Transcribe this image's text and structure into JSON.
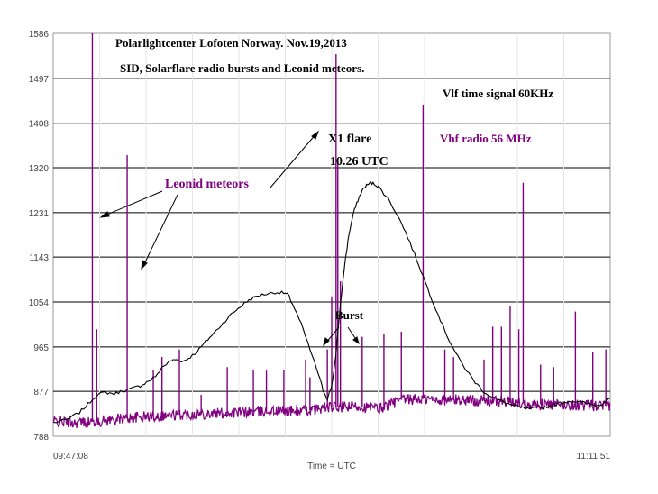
{
  "chart_data": {
    "type": "line",
    "title": "Polarlightcenter Lofoten Norway.  Nov.19,2013",
    "subtitle": "SID, Solarflare radio bursts and Leonid meteors.",
    "xlabel": "Time = UTC",
    "ylabel": "",
    "x_start_label": "09:47:08",
    "x_end_label": "11:11:51",
    "y_ticks": [
      788,
      877,
      965,
      1054,
      1143,
      1231,
      1320,
      1408,
      1497,
      1586
    ],
    "ylim": [
      788,
      1586
    ],
    "grid": true,
    "series": [
      {
        "name": "Vlf time signal 60KHz",
        "color": "#000000",
        "points": [
          [
            0,
            815
          ],
          [
            3,
            820
          ],
          [
            6,
            835
          ],
          [
            8,
            852
          ],
          [
            10,
            870
          ],
          [
            12,
            875
          ],
          [
            14,
            872
          ],
          [
            16,
            878
          ],
          [
            18,
            882
          ],
          [
            20,
            888
          ],
          [
            22,
            898
          ],
          [
            24,
            910
          ],
          [
            25,
            925
          ],
          [
            27,
            937
          ],
          [
            28,
            940
          ],
          [
            30,
            937
          ],
          [
            31,
            942
          ],
          [
            33,
            955
          ],
          [
            35,
            975
          ],
          [
            37,
            993
          ],
          [
            39,
            1012
          ],
          [
            41,
            1030
          ],
          [
            43,
            1045
          ],
          [
            45,
            1058
          ],
          [
            47,
            1066
          ],
          [
            49,
            1070
          ],
          [
            51,
            1073
          ],
          [
            53,
            1072
          ],
          [
            54,
            1068
          ],
          [
            55,
            1050
          ],
          [
            57,
            1010
          ],
          [
            59,
            960
          ],
          [
            61,
            910
          ],
          [
            62,
            880
          ],
          [
            63,
            862
          ],
          [
            64,
            888
          ],
          [
            65,
            950
          ],
          [
            66,
            1050
          ],
          [
            67,
            1130
          ],
          [
            68,
            1190
          ],
          [
            69,
            1230
          ],
          [
            70,
            1255
          ],
          [
            71,
            1275
          ],
          [
            72,
            1285
          ],
          [
            73,
            1290
          ],
          [
            74,
            1287
          ],
          [
            75,
            1280
          ],
          [
            77,
            1258
          ],
          [
            79,
            1228
          ],
          [
            81,
            1192
          ],
          [
            83,
            1150
          ],
          [
            85,
            1105
          ],
          [
            87,
            1060
          ],
          [
            89,
            1018
          ],
          [
            91,
            978
          ],
          [
            93,
            945
          ],
          [
            95,
            918
          ],
          [
            97,
            895
          ],
          [
            99,
            876
          ],
          [
            101,
            865
          ],
          [
            103,
            858
          ],
          [
            105,
            851
          ],
          [
            107,
            846
          ],
          [
            109,
            842
          ],
          [
            111,
            843
          ],
          [
            113,
            846
          ],
          [
            115,
            850
          ],
          [
            117,
            855
          ],
          [
            119,
            858
          ],
          [
            121,
            856
          ],
          [
            123,
            852
          ],
          [
            125,
            849
          ],
          [
            126,
            852
          ],
          [
            127,
            858
          ],
          [
            128,
            864
          ]
        ]
      },
      {
        "name": "Vhf radio 56 MHz",
        "color": "#800080",
        "baseline": [
          [
            0,
            818
          ],
          [
            5,
            815
          ],
          [
            10,
            817
          ],
          [
            15,
            822
          ],
          [
            20,
            826
          ],
          [
            25,
            829
          ],
          [
            30,
            831
          ],
          [
            35,
            833
          ],
          [
            40,
            834
          ],
          [
            45,
            836
          ],
          [
            50,
            838
          ],
          [
            55,
            838
          ],
          [
            60,
            840
          ],
          [
            62,
            845
          ],
          [
            65,
            845
          ],
          [
            68,
            846
          ],
          [
            70,
            848
          ],
          [
            72,
            845
          ],
          [
            75,
            843
          ],
          [
            77,
            850
          ],
          [
            80,
            860
          ],
          [
            85,
            862
          ],
          [
            90,
            860
          ],
          [
            95,
            860
          ],
          [
            100,
            858
          ],
          [
            105,
            855
          ],
          [
            110,
            852
          ],
          [
            115,
            850
          ],
          [
            120,
            850
          ],
          [
            125,
            848
          ],
          [
            128,
            848
          ]
        ],
        "spikes": [
          [
            9,
            1586
          ],
          [
            10,
            1000
          ],
          [
            17,
            1345
          ],
          [
            23,
            920
          ],
          [
            25,
            945
          ],
          [
            29,
            960
          ],
          [
            34,
            870
          ],
          [
            40,
            925
          ],
          [
            46,
            920
          ],
          [
            49,
            918
          ],
          [
            53,
            920
          ],
          [
            58,
            940
          ],
          [
            59,
            905
          ],
          [
            63,
            960
          ],
          [
            64,
            1065
          ],
          [
            65,
            1545
          ],
          [
            65.4,
            1330
          ],
          [
            66,
            1095
          ],
          [
            71,
            985
          ],
          [
            76,
            990
          ],
          [
            80,
            995
          ],
          [
            85,
            1445
          ],
          [
            90,
            960
          ],
          [
            92,
            945
          ],
          [
            99,
            940
          ],
          [
            101,
            1005
          ],
          [
            103,
            1005
          ],
          [
            105,
            1045
          ],
          [
            107,
            1000
          ],
          [
            108,
            1290
          ],
          [
            112,
            930
          ],
          [
            115,
            925
          ],
          [
            120,
            1035
          ],
          [
            124,
            955
          ],
          [
            127,
            960
          ]
        ]
      }
    ],
    "annotations": {
      "leonid": "Leonid meteors",
      "vlf": "Vlf time signal 60KHz",
      "vhf": "Vhf radio 56 MHz",
      "flare_1": "X1 flare",
      "flare_2": "10.26 UTC",
      "burst": "Burst"
    }
  }
}
